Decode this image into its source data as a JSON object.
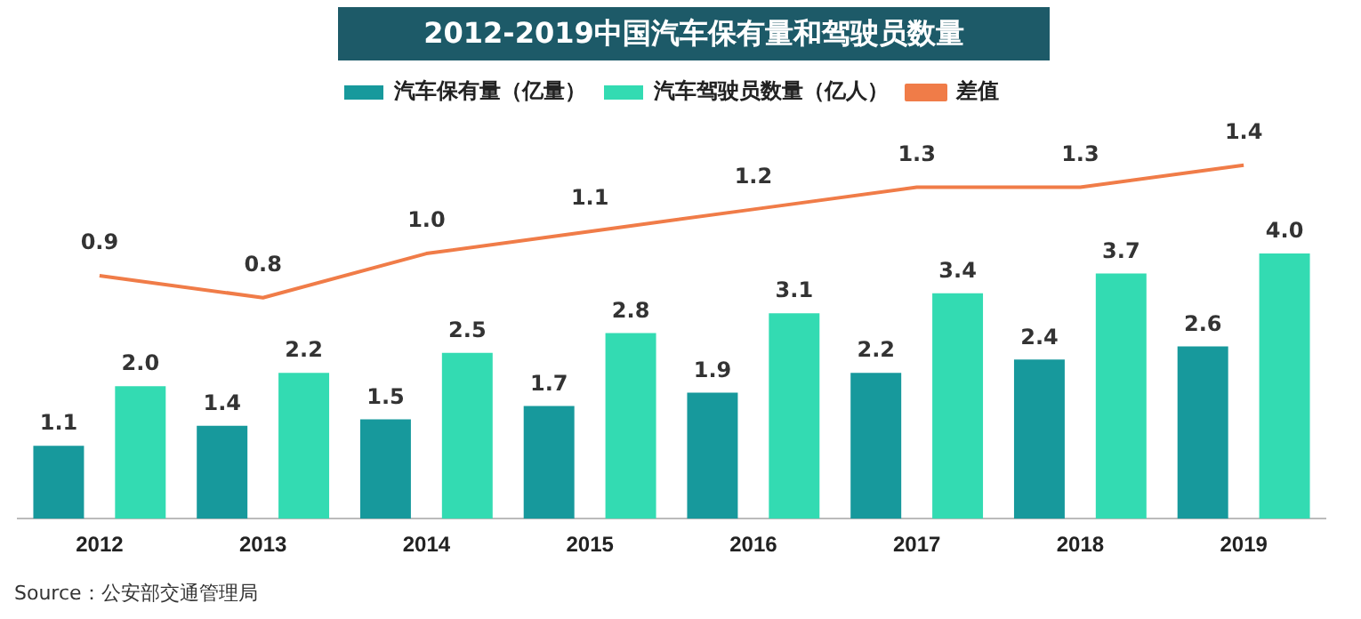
{
  "chart_data": {
    "type": "bar",
    "title": "2012-2019中国汽车保有量和驾驶员数量",
    "categories": [
      "2012",
      "2013",
      "2014",
      "2015",
      "2016",
      "2017",
      "2018",
      "2019"
    ],
    "series": [
      {
        "name": "汽车保有量（亿量）",
        "color": "#17999c",
        "values": [
          1.1,
          1.4,
          1.5,
          1.7,
          1.9,
          2.2,
          2.4,
          2.6
        ],
        "value_labels": [
          "1.1",
          "1.4",
          "1.5",
          "1.7",
          "1.9",
          "2.2",
          "2.4",
          "2.6"
        ]
      },
      {
        "name": "汽车驾驶员数量（亿人）",
        "color": "#33dbb2",
        "values": [
          2.0,
          2.2,
          2.5,
          2.8,
          3.1,
          3.4,
          3.7,
          4.0
        ],
        "value_labels": [
          "2.0",
          "2.2",
          "2.5",
          "2.8",
          "3.1",
          "3.4",
          "3.7",
          "4.0"
        ]
      },
      {
        "name": "差值",
        "type": "line",
        "axis": "y2",
        "color": "#f07c48",
        "values": [
          0.9,
          0.8,
          1.0,
          1.1,
          1.2,
          1.3,
          1.3,
          1.4
        ],
        "value_labels": [
          "0.9",
          "0.8",
          "1.0",
          "1.1",
          "1.2",
          "1.3",
          "1.3",
          "1.4"
        ]
      }
    ],
    "tick_labels": "x",
    "grid": false,
    "legend": "top",
    "marker": "none",
    "annotations": [
      "Source：公安部交通管理局"
    ]
  }
}
